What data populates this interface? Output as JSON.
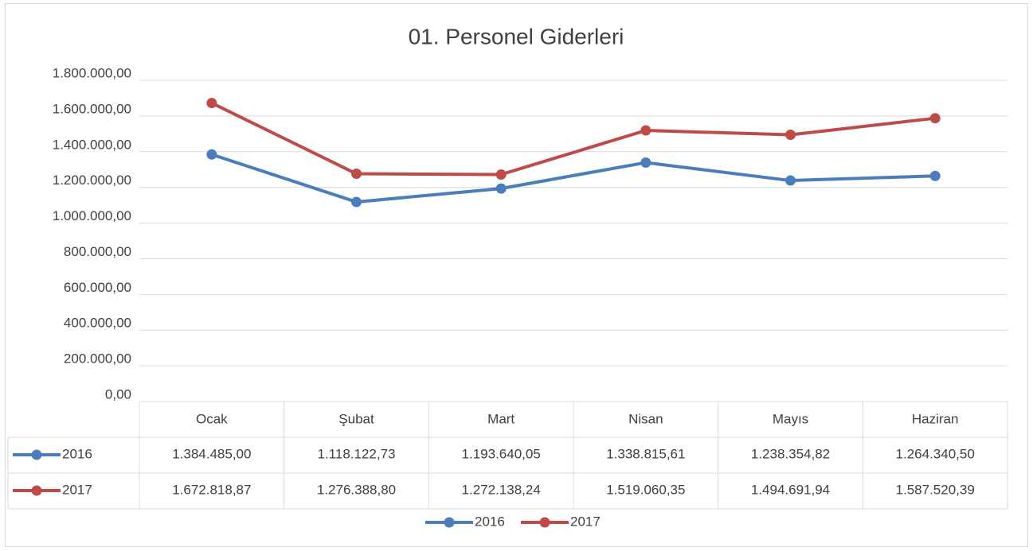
{
  "chart_data": {
    "type": "line",
    "title": "01. Personel Giderleri",
    "categories": [
      "Ocak",
      "Şubat",
      "Mart",
      "Nisan",
      "Mayıs",
      "Haziran"
    ],
    "series": [
      {
        "name": "2016",
        "color": "#4a7ebb",
        "values": [
          1384485.0,
          1118122.73,
          1193640.05,
          1338815.61,
          1238354.82,
          1264340.5
        ],
        "value_labels": [
          "1.384.485,00",
          "1.118.122,73",
          "1.193.640,05",
          "1.338.815,61",
          "1.238.354,82",
          "1.264.340,50"
        ]
      },
      {
        "name": "2017",
        "color": "#be4b48",
        "values": [
          1672818.87,
          1276388.8,
          1272138.24,
          1519060.35,
          1494691.94,
          1587520.39
        ],
        "value_labels": [
          "1.672.818,87",
          "1.276.388,80",
          "1.272.138,24",
          "1.519.060,35",
          "1.494.691,94",
          "1.587.520,39"
        ]
      }
    ],
    "ylim": [
      0,
      1800000
    ],
    "yticks": [
      {
        "value": 0,
        "label": "0,00"
      },
      {
        "value": 200000,
        "label": "200.000,00"
      },
      {
        "value": 400000,
        "label": "400.000,00"
      },
      {
        "value": 600000,
        "label": "600.000,00"
      },
      {
        "value": 800000,
        "label": "800.000,00"
      },
      {
        "value": 1000000,
        "label": "1.000.000,00"
      },
      {
        "value": 1200000,
        "label": "1.200.000,00"
      },
      {
        "value": 1400000,
        "label": "1.400.000,00"
      },
      {
        "value": 1600000,
        "label": "1.600.000,00"
      },
      {
        "value": 1800000,
        "label": "1.800.000,00"
      }
    ],
    "grid": true,
    "legend": "bottom",
    "data_table": true
  }
}
